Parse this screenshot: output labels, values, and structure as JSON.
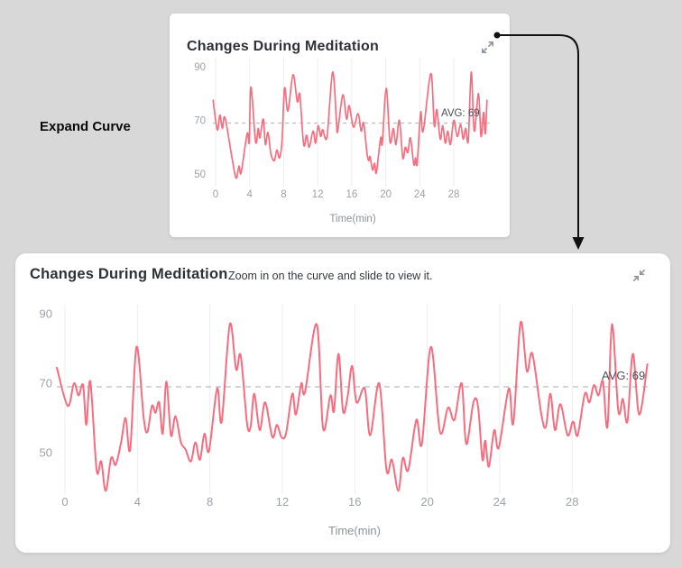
{
  "annotation": {
    "label": "Expand Curve"
  },
  "cards": {
    "small": {
      "title": "Changes During Meditation",
      "expand_icon": "expand-arrows-icon"
    },
    "large": {
      "title": "Changes During Meditation",
      "subtitle": "Zoom in on the curve and slide to view it.",
      "collapse_icon": "collapse-arrows-icon"
    }
  },
  "chart_data": [
    {
      "id": "preview-heart-rate",
      "type": "line",
      "title": "Changes During Meditation",
      "xlabel": "Time(min)",
      "ylabel": "",
      "x_ticks": [
        0,
        4,
        8,
        12,
        16,
        20,
        24,
        28
      ],
      "y_ticks": [
        90,
        70,
        50
      ],
      "xlim": [
        -0.3,
        32.2
      ],
      "ylim": [
        44,
        94
      ],
      "avg": 69,
      "avg_label": "AVG: 69",
      "grid": "vertical-only",
      "legend_position": "none",
      "colors": {
        "line": "#f76d7f",
        "grid": "#ededee",
        "avg_line": "#b9bcc0",
        "tick": "#9da2a8",
        "axis_title": "#8e939a",
        "avg_text": "#4a4e54"
      },
      "points": [
        [
          -0.3,
          77.5
        ],
        [
          0.2,
          66.5
        ],
        [
          0.5,
          72
        ],
        [
          0.8,
          67
        ],
        [
          1.1,
          71
        ],
        [
          1.9,
          56.5
        ],
        [
          2.4,
          48.5
        ],
        [
          2.75,
          53
        ],
        [
          3.0,
          50.5
        ],
        [
          3.7,
          65
        ],
        [
          3.95,
          62
        ],
        [
          4.15,
          82.5
        ],
        [
          4.7,
          62
        ],
        [
          5.0,
          67
        ],
        [
          5.2,
          63.5
        ],
        [
          5.6,
          70.5
        ],
        [
          5.85,
          61
        ],
        [
          6.15,
          65.5
        ],
        [
          6.5,
          57.5
        ],
        [
          6.9,
          55
        ],
        [
          7.2,
          59
        ],
        [
          7.5,
          56
        ],
        [
          7.8,
          62
        ],
        [
          8.1,
          82
        ],
        [
          8.5,
          73.5
        ],
        [
          9.1,
          87
        ],
        [
          9.6,
          77
        ],
        [
          9.9,
          79.5
        ],
        [
          10.35,
          61
        ],
        [
          10.7,
          64.5
        ],
        [
          11.0,
          60
        ],
        [
          11.45,
          66
        ],
        [
          11.75,
          61.5
        ],
        [
          12.05,
          68
        ],
        [
          12.35,
          64
        ],
        [
          12.6,
          66.5
        ],
        [
          13.1,
          64
        ],
        [
          13.75,
          88
        ],
        [
          14.2,
          70
        ],
        [
          14.35,
          66
        ],
        [
          14.95,
          79.5
        ],
        [
          15.4,
          70.5
        ],
        [
          15.7,
          75.5
        ],
        [
          16.2,
          67.5
        ],
        [
          16.75,
          72.5
        ],
        [
          17.1,
          66
        ],
        [
          17.4,
          69
        ],
        [
          17.8,
          57.5
        ],
        [
          18.0,
          55
        ],
        [
          18.15,
          56.5
        ],
        [
          18.45,
          51.5
        ],
        [
          18.7,
          54
        ],
        [
          18.9,
          50.5
        ],
        [
          19.4,
          63.5
        ],
        [
          19.6,
          61.5
        ],
        [
          20.05,
          82
        ],
        [
          20.5,
          62
        ],
        [
          20.9,
          67
        ],
        [
          21.2,
          61
        ],
        [
          21.6,
          70
        ],
        [
          22.0,
          56
        ],
        [
          22.3,
          60
        ],
        [
          22.6,
          58
        ],
        [
          22.9,
          63.5
        ],
        [
          23.3,
          53.5
        ],
        [
          23.5,
          56
        ],
        [
          23.7,
          54
        ],
        [
          24.1,
          73
        ],
        [
          24.4,
          66
        ],
        [
          25.3,
          87.5
        ],
        [
          25.7,
          68
        ],
        [
          26.0,
          74
        ],
        [
          26.4,
          63
        ],
        [
          26.7,
          68
        ],
        [
          27.0,
          61.5
        ],
        [
          27.3,
          66
        ],
        [
          27.6,
          61
        ],
        [
          28.0,
          70
        ],
        [
          28.4,
          64
        ],
        [
          28.8,
          68.5
        ],
        [
          29.1,
          63
        ],
        [
          29.4,
          67
        ],
        [
          29.7,
          62.5
        ],
        [
          30.05,
          88
        ],
        [
          30.4,
          66
        ],
        [
          30.9,
          80
        ],
        [
          31.2,
          64
        ],
        [
          31.5,
          73
        ],
        [
          31.7,
          65
        ],
        [
          31.9,
          77.5
        ]
      ]
    },
    {
      "id": "expanded-heart-rate",
      "type": "line",
      "title": "Changes During Meditation",
      "xlabel": "Time(min)",
      "ylabel": "",
      "x_ticks": [
        0,
        4,
        8,
        12,
        16,
        20,
        24,
        28
      ],
      "y_ticks": [
        90,
        70,
        50
      ],
      "xlim": [
        -0.45,
        32.25
      ],
      "ylim": [
        36,
        94
      ],
      "avg": 69,
      "avg_label": "AVG: 69",
      "grid": "vertical-only",
      "legend_position": "none",
      "colors": {
        "line": "#f76d7f",
        "grid": "#ededee",
        "avg_line": "#b9bcc0",
        "tick": "#9da2a8",
        "axis_title": "#8e939a",
        "avg_text": "#4a4e54"
      },
      "points": [
        [
          -0.45,
          74.5
        ],
        [
          0.15,
          63.5
        ],
        [
          0.5,
          70
        ],
        [
          0.75,
          66.5
        ],
        [
          1.0,
          69.5
        ],
        [
          1.18,
          58
        ],
        [
          1.4,
          70.5
        ],
        [
          1.75,
          45
        ],
        [
          2.0,
          47.5
        ],
        [
          2.25,
          39
        ],
        [
          2.55,
          48.5
        ],
        [
          2.8,
          46.5
        ],
        [
          3.1,
          53
        ],
        [
          3.35,
          60
        ],
        [
          3.6,
          51
        ],
        [
          3.95,
          80.5
        ],
        [
          4.35,
          60
        ],
        [
          4.55,
          56
        ],
        [
          4.8,
          63.5
        ],
        [
          5.0,
          61.5
        ],
        [
          5.2,
          64.5
        ],
        [
          5.4,
          55.5
        ],
        [
          5.6,
          70.5
        ],
        [
          5.85,
          55
        ],
        [
          6.1,
          60.5
        ],
        [
          6.4,
          53
        ],
        [
          6.65,
          51
        ],
        [
          6.95,
          47.5
        ],
        [
          7.2,
          53
        ],
        [
          7.45,
          48
        ],
        [
          7.7,
          55.5
        ],
        [
          7.95,
          50.5
        ],
        [
          8.4,
          68.5
        ],
        [
          8.65,
          59
        ],
        [
          9.1,
          87
        ],
        [
          9.45,
          74
        ],
        [
          9.7,
          78
        ],
        [
          10.05,
          58.5
        ],
        [
          10.25,
          57.5
        ],
        [
          10.45,
          67
        ],
        [
          10.75,
          56.5
        ],
        [
          11.05,
          64.5
        ],
        [
          11.45,
          54.5
        ],
        [
          11.7,
          58
        ],
        [
          11.95,
          54.5
        ],
        [
          12.2,
          55.5
        ],
        [
          12.55,
          67
        ],
        [
          12.75,
          61
        ],
        [
          13.05,
          70
        ],
        [
          13.25,
          67.5
        ],
        [
          13.9,
          87
        ],
        [
          14.25,
          57
        ],
        [
          14.65,
          66.5
        ],
        [
          14.85,
          62
        ],
        [
          15.1,
          78.5
        ],
        [
          15.35,
          62
        ],
        [
          15.6,
          66
        ],
        [
          15.85,
          75
        ],
        [
          16.1,
          64.5
        ],
        [
          16.55,
          68.5
        ],
        [
          16.85,
          55
        ],
        [
          17.35,
          70
        ],
        [
          17.75,
          45
        ],
        [
          18.05,
          48
        ],
        [
          18.4,
          39
        ],
        [
          18.65,
          48.5
        ],
        [
          18.95,
          45
        ],
        [
          19.4,
          59.5
        ],
        [
          19.7,
          52.5
        ],
        [
          20.2,
          80.5
        ],
        [
          20.7,
          56
        ],
        [
          21.15,
          63
        ],
        [
          21.5,
          59.5
        ],
        [
          21.9,
          70
        ],
        [
          22.15,
          52.5
        ],
        [
          22.55,
          64.5
        ],
        [
          22.8,
          63.5
        ],
        [
          23.05,
          48
        ],
        [
          23.2,
          53.5
        ],
        [
          23.4,
          46
        ],
        [
          23.7,
          56.5
        ],
        [
          23.95,
          51.5
        ],
        [
          24.5,
          68.5
        ],
        [
          24.75,
          58.5
        ],
        [
          25.15,
          87.5
        ],
        [
          25.5,
          73.5
        ],
        [
          25.8,
          78.5
        ],
        [
          26.3,
          61
        ],
        [
          26.55,
          57.5
        ],
        [
          26.8,
          67
        ],
        [
          27.05,
          56.5
        ],
        [
          27.35,
          64
        ],
        [
          27.75,
          55
        ],
        [
          28.05,
          59
        ],
        [
          28.3,
          55
        ],
        [
          28.7,
          67
        ],
        [
          28.95,
          64.5
        ],
        [
          29.2,
          69.5
        ],
        [
          29.45,
          66.5
        ],
        [
          29.7,
          70.5
        ],
        [
          29.95,
          57.5
        ],
        [
          30.2,
          87
        ],
        [
          30.55,
          62
        ],
        [
          30.8,
          65.5
        ],
        [
          31.05,
          59
        ],
        [
          31.35,
          78.5
        ],
        [
          31.7,
          61
        ],
        [
          32.15,
          75.5
        ]
      ]
    }
  ]
}
